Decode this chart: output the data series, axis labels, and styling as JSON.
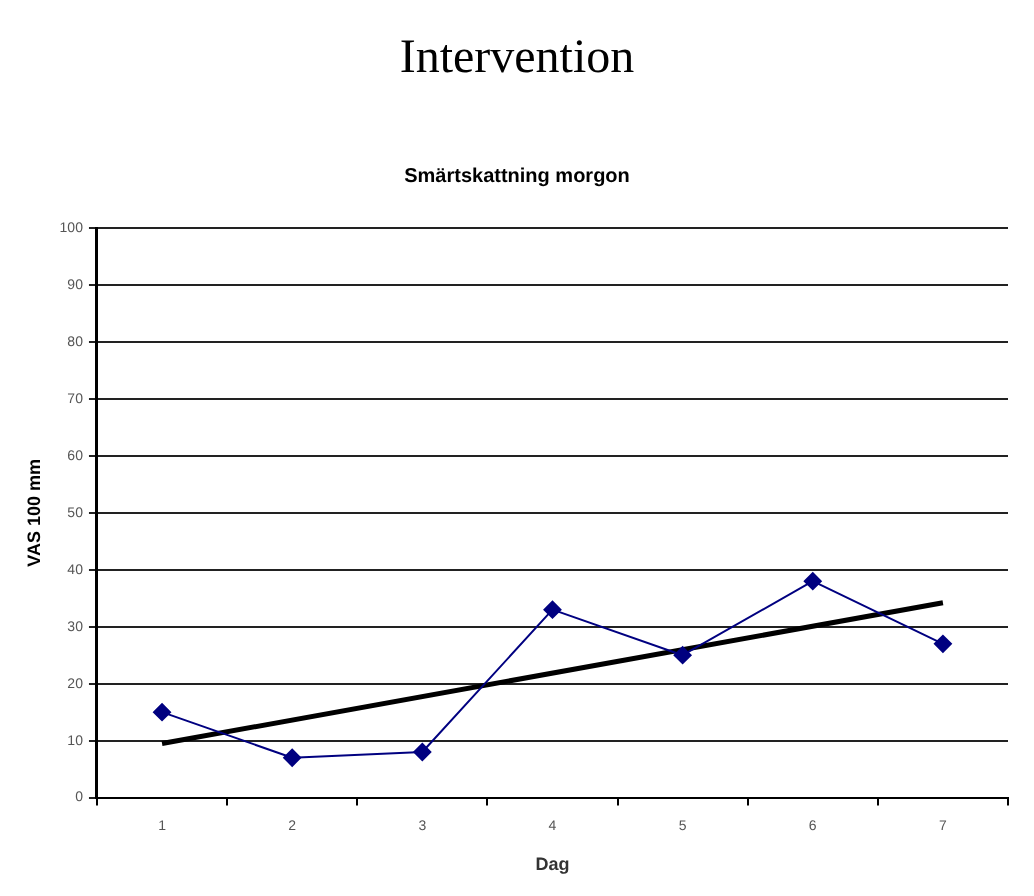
{
  "chart_data": {
    "type": "line",
    "title": "Intervention",
    "subtitle": "Smärtskattning morgon",
    "xlabel": "Dag",
    "ylabel": "VAS 100 mm",
    "categories": [
      "1",
      "2",
      "3",
      "4",
      "5",
      "6",
      "7"
    ],
    "series": [
      {
        "color": "#000080",
        "marker": "diamond",
        "values": [
          15,
          7,
          8,
          33,
          25,
          38,
          27
        ]
      },
      {
        "color": "#000000",
        "marker": "none",
        "values": [
          9.5,
          null,
          null,
          null,
          null,
          null,
          34.2
        ]
      }
    ],
    "ylim": [
      0,
      100
    ],
    "yticks": [
      0,
      10,
      20,
      30,
      40,
      50,
      60,
      70,
      80,
      90,
      100
    ],
    "grid": "y",
    "legend": false
  }
}
